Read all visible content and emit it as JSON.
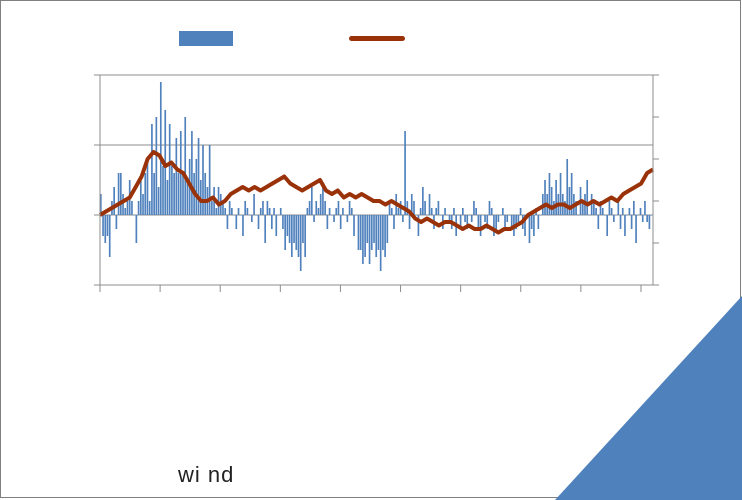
{
  "chart_data": {
    "type": "bar",
    "title": "",
    "xlabel": "",
    "ylabel": "",
    "grid": true,
    "legend": "top",
    "series": [
      {
        "kind": "bar",
        "color": "#4f81bd",
        "values": [
          0.3,
          -0.3,
          -0.4,
          -0.3,
          -0.6,
          0.2,
          0.4,
          -0.2,
          0.6,
          0.6,
          0.3,
          0.1,
          0.2,
          0.5,
          0.2,
          0.0,
          -0.4,
          0.2,
          0.5,
          0.3,
          0.6,
          0.8,
          0.2,
          1.3,
          0.6,
          1.4,
          0.4,
          1.9,
          0.7,
          1.5,
          0.5,
          1.3,
          0.7,
          0.6,
          1.1,
          0.6,
          1.2,
          0.6,
          1.4,
          0.5,
          0.8,
          1.2,
          0.6,
          0.8,
          1.1,
          0.5,
          1.0,
          0.6,
          0.4,
          1.0,
          0.2,
          0.4,
          0.1,
          0.4,
          0.3,
          0.2,
          0.1,
          -0.2,
          0.2,
          0.1,
          0.0,
          -0.2,
          0.1,
          0.0,
          -0.3,
          0.2,
          0.1,
          0.0,
          -0.1,
          0.3,
          0.0,
          -0.2,
          0.1,
          0.2,
          -0.4,
          0.2,
          0.1,
          -0.2,
          0.1,
          -0.3,
          0.0,
          0.1,
          -0.2,
          -0.5,
          -0.3,
          -0.4,
          -0.6,
          -0.4,
          -0.5,
          -0.6,
          -0.8,
          -0.4,
          -0.6,
          0.1,
          0.2,
          0.4,
          -0.1,
          0.2,
          0.1,
          0.3,
          0.4,
          0.2,
          -0.2,
          0.1,
          0.0,
          -0.1,
          0.1,
          0.2,
          -0.2,
          0.1,
          0.0,
          -0.1,
          0.2,
          0.1,
          -0.3,
          0.0,
          -0.5,
          -0.5,
          -0.7,
          -0.6,
          -0.4,
          -0.7,
          -0.5,
          -0.4,
          -0.6,
          -0.5,
          -0.8,
          -0.5,
          -0.6,
          -0.4,
          0.2,
          0.1,
          -0.2,
          0.3,
          0.1,
          0.2,
          -0.1,
          1.2,
          0.2,
          -0.2,
          0.3,
          0.2,
          0.0,
          -0.3,
          0.1,
          0.4,
          0.2,
          0.0,
          0.3,
          0.1,
          -0.2,
          0.1,
          0.2,
          0.0,
          -0.2,
          0.1,
          0.0,
          -0.1,
          -0.2,
          0.1,
          -0.3,
          0.0,
          -0.2,
          0.1,
          -0.1,
          -0.2,
          0.0,
          -0.1,
          0.2,
          0.1,
          -0.2,
          -0.3,
          0.0,
          -0.1,
          -0.2,
          0.2,
          0.1,
          -0.3,
          -0.2,
          -0.1,
          0.0,
          0.1,
          -0.2,
          -0.1,
          0.0,
          -0.2,
          -0.3,
          -0.2,
          -0.1,
          0.1,
          -0.2,
          -0.3,
          0.0,
          -0.4,
          -0.2,
          -0.3,
          0.1,
          -0.2,
          0.0,
          0.3,
          0.5,
          0.3,
          0.6,
          0.4,
          0.2,
          0.5,
          0.3,
          0.6,
          0.3,
          0.2,
          0.8,
          0.4,
          0.6,
          0.3,
          0.2,
          0.0,
          0.4,
          0.2,
          0.3,
          0.5,
          0.0,
          0.3,
          0.2,
          0.1,
          -0.2,
          0.2,
          0.1,
          0.0,
          -0.3,
          0.2,
          0.1,
          -0.1,
          0.0,
          0.2,
          -0.2,
          0.1,
          -0.3,
          0.0,
          0.1,
          -0.2,
          0.2,
          -0.4,
          0.0,
          0.1,
          -0.1,
          0.2,
          -0.1,
          -0.2,
          0.0
        ]
      },
      {
        "kind": "line",
        "color": "#9a3209",
        "values": [
          0.0,
          0.05,
          0.1,
          0.15,
          0.2,
          0.25,
          0.4,
          0.55,
          0.8,
          0.9,
          0.85,
          0.7,
          0.75,
          0.65,
          0.6,
          0.45,
          0.3,
          0.2,
          0.2,
          0.25,
          0.15,
          0.2,
          0.3,
          0.35,
          0.4,
          0.35,
          0.4,
          0.35,
          0.4,
          0.45,
          0.5,
          0.55,
          0.45,
          0.4,
          0.35,
          0.4,
          0.45,
          0.5,
          0.35,
          0.3,
          0.35,
          0.25,
          0.3,
          0.25,
          0.3,
          0.25,
          0.2,
          0.2,
          0.15,
          0.2,
          0.15,
          0.1,
          0.05,
          -0.05,
          -0.1,
          -0.05,
          -0.1,
          -0.15,
          -0.1,
          -0.1,
          -0.15,
          -0.2,
          -0.15,
          -0.2,
          -0.2,
          -0.15,
          -0.2,
          -0.25,
          -0.2,
          -0.2,
          -0.15,
          -0.1,
          0.0,
          0.05,
          0.1,
          0.15,
          0.1,
          0.15,
          0.15,
          0.1,
          0.15,
          0.2,
          0.15,
          0.2,
          0.15,
          0.2,
          0.25,
          0.2,
          0.3,
          0.35,
          0.4,
          0.45,
          0.6,
          0.65
        ]
      }
    ],
    "ylim_left": [
      -1,
      2
    ],
    "ylim_right": [
      -1,
      2
    ],
    "x_ticks": 10
  },
  "footer": {
    "text": "wi nd"
  }
}
